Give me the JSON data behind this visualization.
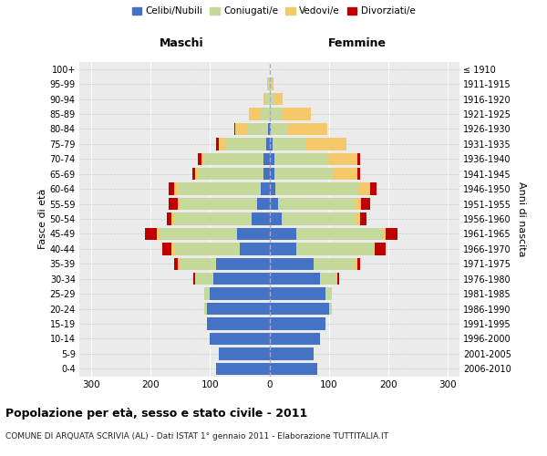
{
  "age_groups": [
    "0-4",
    "5-9",
    "10-14",
    "15-19",
    "20-24",
    "25-29",
    "30-34",
    "35-39",
    "40-44",
    "45-49",
    "50-54",
    "55-59",
    "60-64",
    "65-69",
    "70-74",
    "75-79",
    "80-84",
    "85-89",
    "90-94",
    "95-99",
    "100+"
  ],
  "birth_years": [
    "2006-2010",
    "2001-2005",
    "1996-2000",
    "1991-1995",
    "1986-1990",
    "1981-1985",
    "1976-1980",
    "1971-1975",
    "1966-1970",
    "1961-1965",
    "1956-1960",
    "1951-1955",
    "1946-1950",
    "1941-1945",
    "1936-1940",
    "1931-1935",
    "1926-1930",
    "1921-1925",
    "1916-1920",
    "1911-1915",
    "≤ 1910"
  ],
  "males": {
    "celibi": [
      90,
      85,
      100,
      105,
      105,
      100,
      95,
      90,
      50,
      55,
      30,
      20,
      15,
      10,
      10,
      5,
      2,
      0,
      0,
      0,
      0
    ],
    "coniugati": [
      0,
      0,
      0,
      0,
      5,
      10,
      30,
      60,
      110,
      130,
      130,
      130,
      140,
      110,
      100,
      70,
      35,
      15,
      5,
      2,
      0
    ],
    "vedovi": [
      0,
      0,
      0,
      0,
      0,
      0,
      0,
      5,
      5,
      5,
      5,
      5,
      5,
      5,
      5,
      10,
      20,
      20,
      5,
      2,
      0
    ],
    "divorziati": [
      0,
      0,
      0,
      0,
      0,
      0,
      3,
      5,
      15,
      20,
      8,
      15,
      10,
      5,
      5,
      5,
      2,
      0,
      0,
      0,
      0
    ]
  },
  "females": {
    "nubili": [
      80,
      75,
      85,
      95,
      100,
      95,
      85,
      75,
      45,
      45,
      20,
      15,
      10,
      8,
      8,
      5,
      2,
      0,
      0,
      0,
      0
    ],
    "coniugate": [
      0,
      0,
      0,
      0,
      5,
      10,
      30,
      70,
      130,
      145,
      125,
      130,
      140,
      100,
      90,
      55,
      30,
      20,
      8,
      2,
      0
    ],
    "vedove": [
      0,
      0,
      0,
      0,
      0,
      0,
      0,
      3,
      3,
      5,
      8,
      10,
      20,
      40,
      50,
      70,
      65,
      50,
      15,
      5,
      1
    ],
    "divorziate": [
      0,
      0,
      0,
      0,
      0,
      0,
      3,
      5,
      18,
      20,
      10,
      15,
      10,
      5,
      5,
      0,
      0,
      0,
      0,
      0,
      0
    ]
  },
  "colors": {
    "celibi_nubili": "#4472C4",
    "coniugati": "#C5D99A",
    "vedovi": "#F5C96A",
    "divorziati": "#C00000"
  },
  "xlim": 320,
  "title": "Popolazione per età, sesso e stato civile - 2011",
  "subtitle": "COMUNE DI ARQUATA SCRIVIA (AL) - Dati ISTAT 1° gennaio 2011 - Elaborazione TUTTITALIA.IT",
  "ylabel_left": "Fasce di età",
  "ylabel_right": "Anni di nascita",
  "xlabel_left": "Maschi",
  "xlabel_right": "Femmine",
  "legend_labels": [
    "Celibi/Nubili",
    "Coniugati/e",
    "Vedovi/e",
    "Divorziati/e"
  ],
  "bg_color": "#ffffff",
  "plot_bg": "#ebebeb"
}
